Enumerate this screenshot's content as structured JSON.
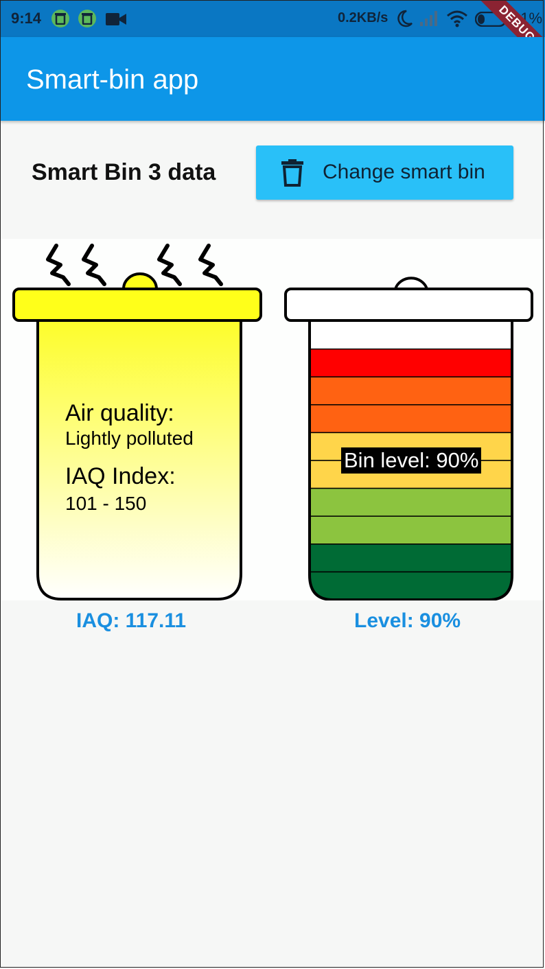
{
  "status_bar": {
    "time": "9:14",
    "network_speed": "0.2KB/s",
    "battery_percent": "21%",
    "icons": [
      "trash-icon",
      "trash-icon",
      "video-camera-icon",
      "moon-icon",
      "signal-icon",
      "wifi-icon",
      "battery-icon"
    ]
  },
  "debug_banner": "DEBUG",
  "app_bar": {
    "title": "Smart-bin app"
  },
  "header": {
    "section_title": "Smart Bin 3 data",
    "change_button_label": "Change smart bin",
    "change_button_icon": "trash-icon"
  },
  "air_bin": {
    "air_quality_label": "Air quality:",
    "air_quality_value": "Lightly polluted",
    "iaq_label": "IAQ Index:",
    "iaq_range": "101 - 150",
    "lid_color": "#ffff1a",
    "fill_top_color": "#fdfd2a",
    "fill_bottom_color": "#ffffff",
    "odor_icon": "smell-waves-icon"
  },
  "level_bin": {
    "level_label": "Bin level: 90%",
    "level_percent": 90,
    "segment_colors": [
      "#ff0000",
      "#ff6212",
      "#ff6212",
      "#ffd54a",
      "#ffd54a",
      "#8cc43f",
      "#8cc43f",
      "#006b35",
      "#006b35"
    ]
  },
  "readings": {
    "iaq": "IAQ: 117.11",
    "level": "Level: 90%",
    "accent_color": "#1a8fe0"
  }
}
